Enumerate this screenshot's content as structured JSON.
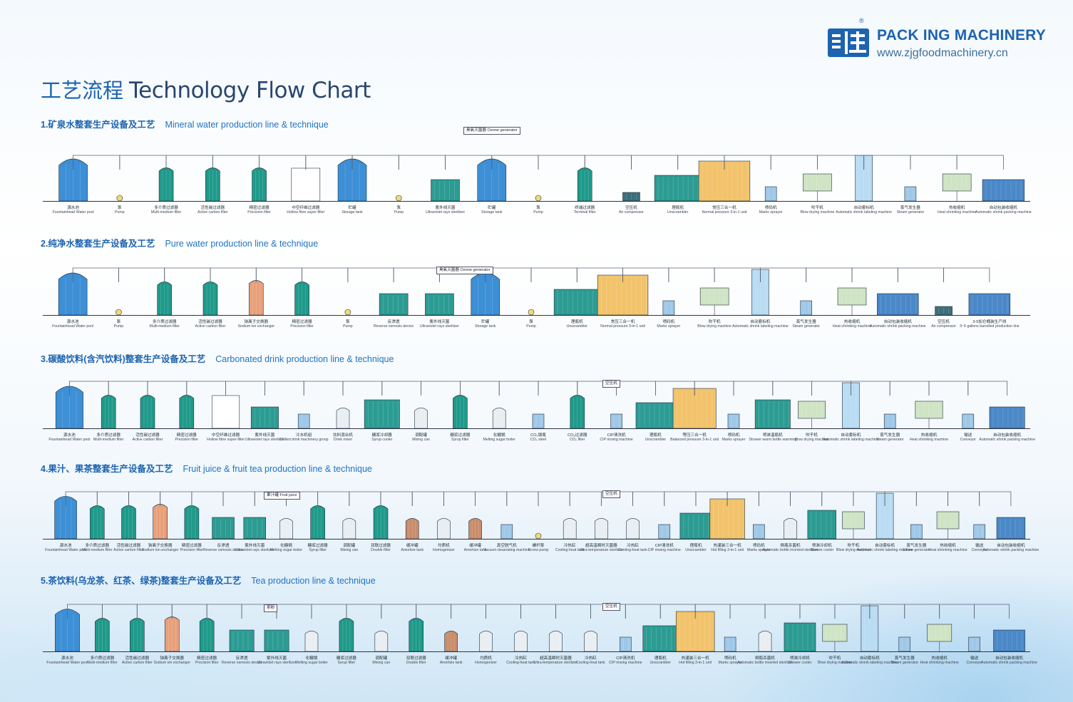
{
  "brand": {
    "name": "PACK ING MACHINERY",
    "website": "www.zjgfoodmachinery.cn",
    "registered": "®"
  },
  "header": {
    "title_cn": "工艺流程",
    "title_en": "Technology Flow Chart"
  },
  "sections": [
    {
      "title_cn": "1.矿泉水整套生产设备及工艺",
      "title_en": "Mineral water production line & technique",
      "labels": [
        [
          "源水池",
          "Fountainhead Water pool"
        ],
        [
          "泵",
          "Pump"
        ],
        [
          "多介质过滤器",
          "Multi-medium filter"
        ],
        [
          "活性碳过滤器",
          "Active carbon filter"
        ],
        [
          "精密过滤器",
          "Precision filter"
        ],
        [
          "中空纤维过滤器",
          "Hollow fibre super-filter"
        ],
        [
          "贮罐",
          "Storage tank"
        ],
        [
          "泵",
          "Pump"
        ],
        [
          "紫外线灭菌",
          "Ultraviolet rays sterilizer"
        ],
        [
          "贮罐",
          "Storage tank"
        ],
        [
          "泵",
          "Pump"
        ],
        [
          "终端过滤器",
          "Terminal filter"
        ],
        [
          "空压机",
          "Air compressor"
        ],
        [
          "理瓶机",
          "Unscrambler"
        ],
        [
          "常压三合一机",
          "Normal pressure 3-in-1 unit"
        ],
        [
          "喷码机",
          "Marks sprayer"
        ],
        [
          "吹干机",
          "Blow drying machine"
        ],
        [
          "自动套标机",
          "Automatic shrink labeling machine"
        ],
        [
          "蒸气发生器",
          "Steam generator"
        ],
        [
          "热收缩机",
          "Heat shrinking machine"
        ],
        [
          "自动包装收缩机",
          "Automatic shrink packing machine"
        ]
      ],
      "tags": [
        "臭氧灭菌器 Ozone generator"
      ]
    },
    {
      "title_cn": "2.纯净水整套生产设备及工艺",
      "title_en": "Pure water production line & technique",
      "labels": [
        [
          "源水池",
          "Fountainhead Water pool"
        ],
        [
          "泵",
          "Pump"
        ],
        [
          "多介质过滤器",
          "Multi-medium filter"
        ],
        [
          "活性碳过滤器",
          "Active carbon filter"
        ],
        [
          "钠离子交换器",
          "Sodium ion exchanger"
        ],
        [
          "精密过滤器",
          "Precision filter"
        ],
        [
          "泵",
          "Pump"
        ],
        [
          "反渗透",
          "Reverse osmosis device"
        ],
        [
          "紫外线灭菌",
          "Ultraviolet rays sterilizer"
        ],
        [
          "贮罐",
          "Storage tank"
        ],
        [
          "泵",
          "Pump"
        ],
        [
          "理瓶机",
          "Unscrambler"
        ],
        [
          "常压三合一机",
          "Normal pressure 3-in-1 unit"
        ],
        [
          "喷码机",
          "Marks sprayer"
        ],
        [
          "吹干机",
          "Blow drying machine"
        ],
        [
          "自动套标机",
          "Automatic shrink labeling machine"
        ],
        [
          "蒸气发生器",
          "Steam generator"
        ],
        [
          "热收缩机",
          "Heat shrinking machine"
        ],
        [
          "自动包装收缩机",
          "Automatic shrink packing machine"
        ],
        [
          "空压机",
          "Air compressor"
        ],
        [
          "3-5加仑桶装生产线",
          "3~5 gallons barrelled production line"
        ]
      ],
      "tags": [
        "臭氧灭菌器 Ozone generator"
      ]
    },
    {
      "title_cn": "3.碳酸饮料(含汽饮料)整套生产设备及工艺",
      "title_en": "Carbonated drink production line & technique",
      "labels": [
        [
          "源水池",
          "Fountainhead Water pool"
        ],
        [
          "多介质过滤器",
          "Multi-medium filter"
        ],
        [
          "活性碳过滤器",
          "Active carbon filter"
        ],
        [
          "精密过滤器",
          "Precision filter"
        ],
        [
          "中空纤维过滤器",
          "Hollow fibre super-filter"
        ],
        [
          "紫外线灭菌",
          "Ultraviolet rays sterilizer"
        ],
        [
          "冷水机组",
          "Chilled drink machinery group"
        ],
        [
          "饮料混合机",
          "Drink mixer"
        ],
        [
          "糖浆冷却器",
          "Syrup cooler"
        ],
        [
          "调配罐",
          "Mixing can"
        ],
        [
          "糖浆过滤器",
          "Syrup filter"
        ],
        [
          "化糖锅",
          "Melting sugar boiler"
        ],
        [
          "CO₂钢瓶",
          "CO₂ steel"
        ],
        [
          "CO₂过滤器",
          "CO₂ filter"
        ],
        [
          "CIP清洗机",
          "CIP rinsing machine"
        ],
        [
          "理瓶机",
          "Unscrambler"
        ],
        [
          "等压三合一机",
          "Balanced pressure 3-in-1 unit"
        ],
        [
          "喷码机",
          "Marks sprayer"
        ],
        [
          "喷淋温瓶机",
          "Shower warm bottle warming"
        ],
        [
          "吹干机",
          "Blow drying machine"
        ],
        [
          "自动套标机",
          "Automatic shrink labeling machine"
        ],
        [
          "蒸气发生器",
          "Steam generator"
        ],
        [
          "热收缩机",
          "Heat shrinking machine"
        ],
        [
          "输送",
          "Conveyor"
        ],
        [
          "自动包装收缩机",
          "Automatic shrink packing machine"
        ]
      ],
      "tags": [
        "空压机"
      ]
    },
    {
      "title_cn": "4.果汁、果茶整套生产设备及工艺",
      "title_en": "Fruit juice & fruit tea production line & technique",
      "labels": [
        [
          "源水池",
          "Fountainhead Water pool"
        ],
        [
          "多介质过滤器",
          "Multi-medium filter"
        ],
        [
          "活性碳过滤器",
          "Active carbon filter"
        ],
        [
          "钠离子交换器",
          "Sodium ion exchanger"
        ],
        [
          "精密过滤器",
          "Precision filter"
        ],
        [
          "反渗透",
          "Reverse osmosis device"
        ],
        [
          "紫外线灭菌",
          "Ultraviolet rays sterilizer"
        ],
        [
          "化糖锅",
          "Melting sugar boiler"
        ],
        [
          "糖浆过滤器",
          "Syrup filter"
        ],
        [
          "调配罐",
          "Mixing can"
        ],
        [
          "双联过滤器",
          "Double filter"
        ],
        [
          "缓冲罐",
          "Amortize tank"
        ],
        [
          "均质机",
          "Homogenizer"
        ],
        [
          "缓冲罐",
          "Amortize tank"
        ],
        [
          "真空脱气机",
          "Vacuum deaerating machine"
        ],
        [
          "螺杆泵",
          "Screw pump"
        ],
        [
          "冷热缸",
          "Cooling-heat tank"
        ],
        [
          "超高温瞬时灭菌器",
          "Ultra-temperature sterilizer"
        ],
        [
          "冷热缸",
          "Cooling-heat tank"
        ],
        [
          "CIP清洗机",
          "CIP rinsing machine"
        ],
        [
          "理瓶机",
          "Unscrambler"
        ],
        [
          "热灌装三合一机",
          "Hot filling 3-in-1 unit"
        ],
        [
          "喷码机",
          "Marks sprayer"
        ],
        [
          "倒瓶杀菌机",
          "Automatic bottle inverted sterilizer"
        ],
        [
          "喷淋冷却机",
          "Shower cooler"
        ],
        [
          "吹干机",
          "Blow drying machine"
        ],
        [
          "自动套标机",
          "Automatic shrink labeling machine"
        ],
        [
          "蒸气发生器",
          "Steam generator"
        ],
        [
          "热收缩机",
          "Heat shrinking machine"
        ],
        [
          "输送",
          "Conveyor"
        ],
        [
          "自动包装收缩机",
          "Automatic shrink packing machine"
        ]
      ],
      "tags": [
        "果汁罐 Fruit juice",
        "空压机"
      ]
    },
    {
      "title_cn": "5.茶饮料(乌龙茶、红茶、绿茶)整套生产设备及工艺",
      "title_en": "Tea production line & technique",
      "labels": [
        [
          "源水池",
          "Fountainhead Water pool"
        ],
        [
          "多介质过滤器",
          "Multi-medium filter"
        ],
        [
          "活性碳过滤器",
          "Active carbon filter"
        ],
        [
          "钠离子交换器",
          "Sodium ion exchanger"
        ],
        [
          "精密过滤器",
          "Precision filter"
        ],
        [
          "反渗透",
          "Reverse osmosis device"
        ],
        [
          "紫外线灭菌",
          "Ultraviolet rays sterilizer"
        ],
        [
          "化糖锅",
          "Melting sugar boiler"
        ],
        [
          "糖浆过滤器",
          "Syrup filter"
        ],
        [
          "调配罐",
          "Mixing can"
        ],
        [
          "双联过滤器",
          "Double filter"
        ],
        [
          "缓冲罐",
          "Amortize tank"
        ],
        [
          "均质机",
          "Homogenizer"
        ],
        [
          "冷热缸",
          "Cooling-heat tank"
        ],
        [
          "超高温瞬时灭菌器",
          "Ultra-temperature sterilizer"
        ],
        [
          "冷热缸",
          "Cooling-heat tank"
        ],
        [
          "CIP清洗机",
          "CIP rinsing machine"
        ],
        [
          "理瓶机",
          "Unscrambler"
        ],
        [
          "热灌装三合一机",
          "Hot filling 3-in-1 unit"
        ],
        [
          "喷码机",
          "Marks sprayer"
        ],
        [
          "倒瓶杀菌机",
          "Automatic bottle inverted sterilizer"
        ],
        [
          "喷淋冷却机",
          "Shower cooler"
        ],
        [
          "吹干机",
          "Blow drying machine"
        ],
        [
          "自动套标机",
          "Automatic shrink labeling machine"
        ],
        [
          "蒸气发生器",
          "Steam generator"
        ],
        [
          "热收缩机",
          "Heat shrinking machine"
        ],
        [
          "输送",
          "Conveyor"
        ],
        [
          "自动包装收缩机",
          "Automatic shrink packing machine"
        ]
      ],
      "tags": [
        "茶粉",
        "空压机"
      ]
    }
  ],
  "colors": {
    "tank_green": "#1f9a8a",
    "tank_blue": "#3d8fd6",
    "machine_yellow": "#f2c36b",
    "machine_teal": "#2c9c93",
    "machine_blue": "#4a88c8",
    "line": "#5a6470",
    "accent": "#1c63b0"
  }
}
